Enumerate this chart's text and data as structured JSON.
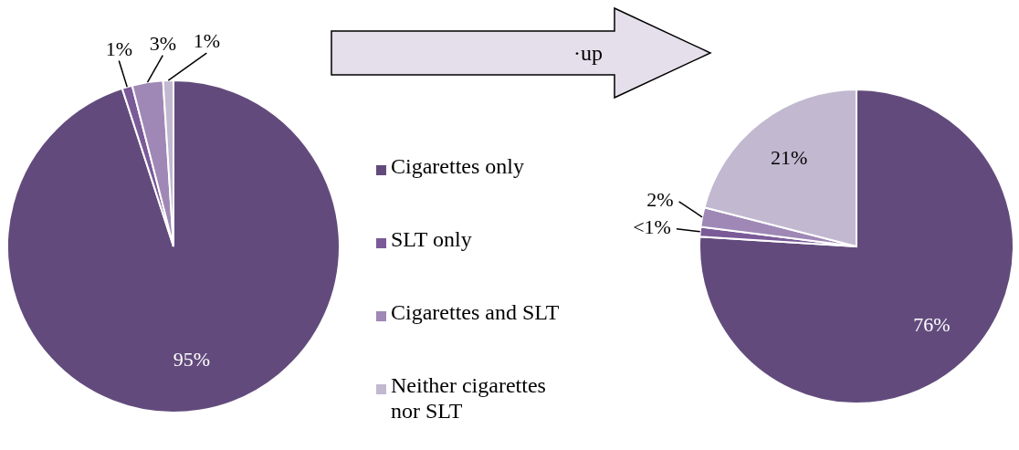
{
  "chart_data": [
    {
      "type": "pie",
      "categories": [
        "Cigarettes only",
        "SLT only",
        "Cigarettes and SLT",
        "Neither cigarettes nor SLT"
      ],
      "values": [
        95,
        1,
        3,
        1
      ],
      "value_labels": [
        "95%",
        "1%",
        "3%",
        "1%"
      ],
      "colors": [
        "#624b7c",
        "#7a5a97",
        "#9f88b6",
        "#c2b8d0"
      ],
      "legend": "right"
    },
    {
      "type": "pie",
      "categories": [
        null,
        null,
        null,
        null
      ],
      "values": [
        76,
        1,
        2,
        21
      ],
      "value_labels": [
        "76%",
        "<1%",
        "2%",
        "21%"
      ],
      "colors": [
        "#624b7c",
        "#7a5a97",
        "#9f88b6",
        "#c2b8d0"
      ],
      "annotations": [
        "·up"
      ]
    }
  ]
}
